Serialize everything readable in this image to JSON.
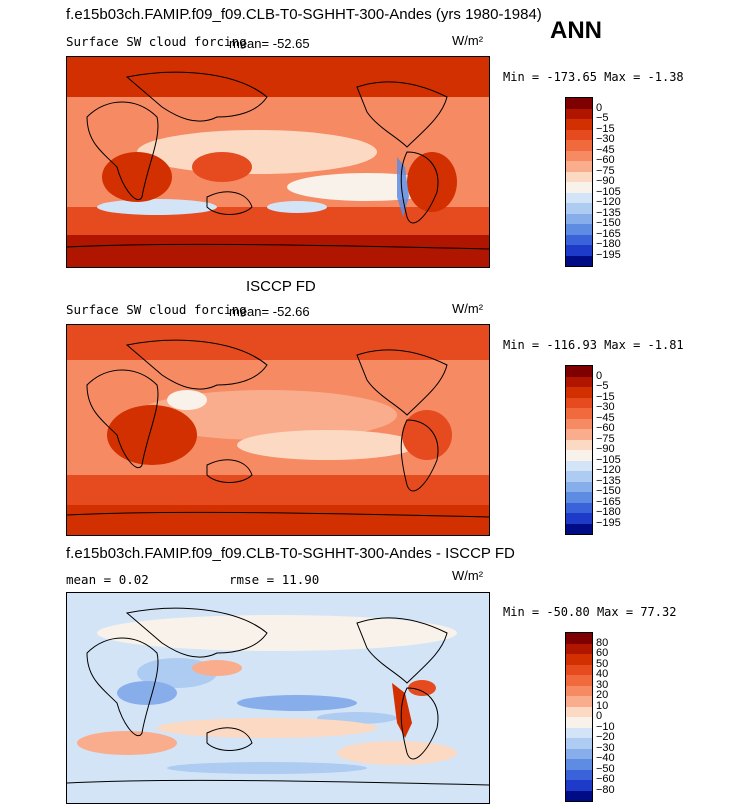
{
  "header": {
    "title": "f.e15b03ch.FAMIP.f09_f09.CLB-T0-SGHHT-300-Andes (yrs 1980-1984)",
    "season": "ANN"
  },
  "panels": [
    {
      "id": "model",
      "heading": "",
      "field": "Surface SW cloud forcing",
      "mean_label": "mean=",
      "mean_value": "-52.65",
      "units": "W/m²",
      "min_label": "Min =",
      "min_value": "-173.65",
      "max_label": "Max =",
      "max_value": "-1.38"
    },
    {
      "id": "obs",
      "heading": "ISCCP FD",
      "field": "Surface SW cloud forcing",
      "mean_label": "mean=",
      "mean_value": "-52.66",
      "units": "W/m²",
      "min_label": "Min =",
      "min_value": "-116.93",
      "max_label": "Max =",
      "max_value": "-1.81"
    },
    {
      "id": "diff",
      "heading": "f.e15b03ch.FAMIP.f09_f09.CLB-T0-SGHHT-300-Andes - ISCCP FD",
      "mean_label": "mean =",
      "mean_value": "0.02",
      "rmse_label": "rmse =",
      "rmse_value": "11.90",
      "units": "W/m²",
      "min_label": "Min =",
      "min_value": "-50.80",
      "max_label": "Max =",
      "max_value": "77.32"
    }
  ],
  "colorbars": {
    "absolute": {
      "levels": [
        "0",
        "−5",
        "−15",
        "−30",
        "−45",
        "−60",
        "−75",
        "−90",
        "−105",
        "−120",
        "−135",
        "−150",
        "−165",
        "−180",
        "−195"
      ],
      "colors": [
        "#7f0000",
        "#b01500",
        "#d23000",
        "#e54b1f",
        "#f06a3e",
        "#f68a63",
        "#f9ad8c",
        "#fcd9c2",
        "#f9f2ea",
        "#d3e4f7",
        "#aecbf2",
        "#87aeeb",
        "#5e8ce3",
        "#3a63d9",
        "#1e3ac9",
        "#000c86"
      ]
    },
    "difference": {
      "levels": [
        "80",
        "60",
        "50",
        "40",
        "30",
        "20",
        "10",
        "0",
        "−10",
        "−20",
        "−30",
        "−40",
        "−50",
        "−60",
        "−80"
      ],
      "colors": [
        "#7f0000",
        "#b01500",
        "#d23000",
        "#e54b1f",
        "#f06a3e",
        "#f68a63",
        "#f9ad8c",
        "#fcd9c2",
        "#f9f2ea",
        "#d3e4f7",
        "#aecbf2",
        "#87aeeb",
        "#5e8ce3",
        "#3a63d9",
        "#1e3ac9",
        "#000c86"
      ]
    }
  },
  "chart_data": [
    {
      "type": "heatmap",
      "title": "Surface SW cloud forcing",
      "subtitle": "f.e15b03ch.FAMIP.f09_f09.CLB-T0-SGHHT-300-Andes (yrs 1980-1984), ANN",
      "units": "W/m2",
      "mean": -52.65,
      "min": -173.65,
      "max": -1.38,
      "contour_levels": [
        0,
        -5,
        -15,
        -30,
        -45,
        -60,
        -75,
        -90,
        -105,
        -120,
        -135,
        -150,
        -165,
        -180,
        -195
      ],
      "projection": "global lat-lon, centered on Pacific"
    },
    {
      "type": "heatmap",
      "title": "Surface SW cloud forcing",
      "subtitle": "ISCCP FD",
      "units": "W/m2",
      "mean": -52.66,
      "min": -116.93,
      "max": -1.81,
      "contour_levels": [
        0,
        -5,
        -15,
        -30,
        -45,
        -60,
        -75,
        -90,
        -105,
        -120,
        -135,
        -150,
        -165,
        -180,
        -195
      ],
      "projection": "global lat-lon, centered on Pacific"
    },
    {
      "type": "heatmap",
      "title": "f.e15b03ch.FAMIP.f09_f09.CLB-T0-SGHHT-300-Andes - ISCCP FD",
      "units": "W/m2",
      "mean": 0.02,
      "rmse": 11.9,
      "min": -50.8,
      "max": 77.32,
      "contour_levels": [
        80,
        60,
        50,
        40,
        30,
        20,
        10,
        0,
        -10,
        -20,
        -30,
        -40,
        -50,
        -60,
        -80
      ],
      "projection": "global lat-lon, centered on Pacific"
    }
  ]
}
